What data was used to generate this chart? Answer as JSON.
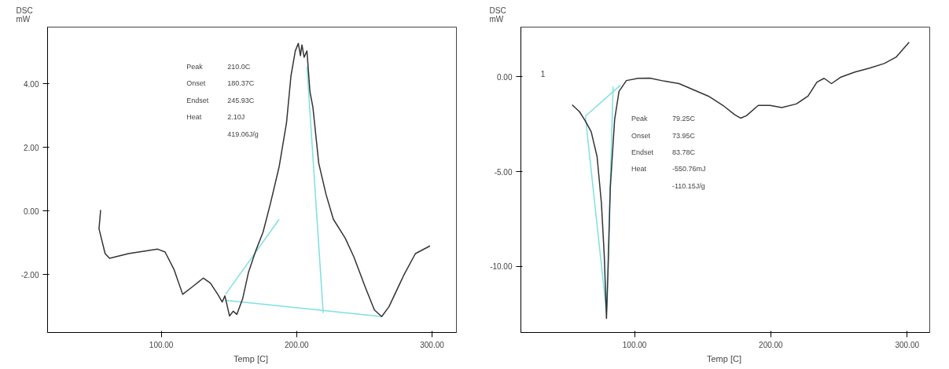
{
  "chart_data": [
    {
      "type": "line",
      "ylabel": "DSC\nmW",
      "xlabel": "Temp  [C]",
      "xlim": [
        16,
        318
      ],
      "ylim": [
        -3.82,
        5.78
      ],
      "xticks": [
        {
          "value": 100,
          "label": "100.00"
        },
        {
          "value": 200,
          "label": "200.00"
        },
        {
          "value": 300,
          "label": "300.00"
        }
      ],
      "yticks": [
        {
          "value": -2,
          "label": "-2.00"
        },
        {
          "value": 0,
          "label": "0.00"
        },
        {
          "value": 2,
          "label": "2.00"
        },
        {
          "value": 4,
          "label": "4.00"
        }
      ],
      "grid": false,
      "marker": "none",
      "line_style": "solid",
      "series": [
        {
          "color": "#333333",
          "x": [
            55.2,
            54,
            58.5,
            61.8,
            75.8,
            97.4,
            102.8,
            109.3,
            115.8,
            123.4,
            131,
            136.3,
            141.7,
            145,
            147,
            150.4,
            153.1,
            155.8,
            160.1,
            164.4,
            169.8,
            175.2,
            180.6,
            187.1,
            192.5,
            195.8,
            199,
            201.2,
            202.8,
            203.9,
            205.5,
            207.6,
            209.8,
            212,
            216.3,
            221.7,
            227.1,
            235.8,
            242.2,
            250.9,
            257.4,
            262.8,
            268.2,
            279,
            287.7,
            298.5
          ],
          "values": [
            0.03,
            -0.56,
            -1.34,
            -1.49,
            -1.34,
            -1.2,
            -1.29,
            -1.83,
            -2.62,
            -2.37,
            -2.11,
            -2.27,
            -2.62,
            -2.86,
            -2.67,
            -3.3,
            -3.15,
            -3.25,
            -2.76,
            -1.93,
            -1.25,
            -0.66,
            0.23,
            1.4,
            2.77,
            4.25,
            5.03,
            5.27,
            4.88,
            5.22,
            4.83,
            5.03,
            3.75,
            3.26,
            1.5,
            0.52,
            -0.26,
            -0.85,
            -1.44,
            -2.42,
            -3.11,
            -3.32,
            -3.01,
            -2.03,
            -1.34,
            -1.1
          ]
        },
        {
          "color": "#7fe0e0",
          "x": [
            147.5,
            262.8
          ],
          "values": [
            -2.81,
            -3.32
          ]
        },
        {
          "color": "#7fe0e0",
          "x": [
            147.5,
            187.1
          ],
          "values": [
            -2.62,
            -0.26
          ]
        },
        {
          "color": "#7fe0e0",
          "x": [
            207.6,
            219.6
          ],
          "values": [
            4.54,
            -3.21
          ]
        }
      ],
      "annotations": [
        "Peak",
        "210.0C",
        "Onset",
        "180.37C",
        "Endset",
        "245.93C",
        "Heat",
        "2.10J",
        "419.06J/g"
      ]
    },
    {
      "type": "line",
      "ylabel": "DSC\nmW",
      "xlabel": "Temp  [C]",
      "xlim": [
        16.6,
        316.6
      ],
      "ylim": [
        -13.48,
        2.62
      ],
      "xticks": [
        {
          "value": 100,
          "label": "100.00"
        },
        {
          "value": 200,
          "label": "200.00"
        },
        {
          "value": 300,
          "label": "300.00"
        }
      ],
      "yticks": [
        {
          "value": -10,
          "label": "-10.00"
        },
        {
          "value": -5,
          "label": "-5.00"
        },
        {
          "value": 0,
          "label": "0.00"
        }
      ],
      "grid": false,
      "marker": "none",
      "line_style": "solid",
      "series": [
        {
          "name": "1",
          "color": "#333333",
          "x": [
            54.2,
            59.6,
            63.9,
            68.2,
            72.5,
            75.7,
            77.8,
            79.4,
            80.6,
            82.2,
            85.4,
            88.6,
            94,
            102.6,
            111.2,
            121.9,
            132.7,
            143.4,
            154.2,
            164.9,
            173.5,
            177.8,
            182.1,
            190.8,
            199.4,
            208,
            218.7,
            227.3,
            233.8,
            239.1,
            244.5,
            251,
            261.7,
            272.5,
            283.2,
            291.8,
            301.5
          ],
          "values": [
            -1.48,
            -1.84,
            -2.33,
            -2.9,
            -4.21,
            -6.67,
            -9.46,
            -12.74,
            -10.11,
            -5.85,
            -2.25,
            -0.77,
            -0.2,
            -0.08,
            -0.07,
            -0.23,
            -0.36,
            -0.69,
            -1.02,
            -1.51,
            -2.0,
            -2.18,
            -2.05,
            -1.51,
            -1.51,
            -1.62,
            -1.43,
            -1.02,
            -0.28,
            -0.08,
            -0.36,
            -0.03,
            0.25,
            0.46,
            0.7,
            1.03,
            1.82
          ]
        },
        {
          "color": "#7fe0e0",
          "x": [
            63.9,
            89.7
          ],
          "values": [
            -2.08,
            -0.44
          ]
        },
        {
          "color": "#7fe0e0",
          "x": [
            63.9,
            79.4,
            84.3
          ],
          "values": [
            -2.08,
            -12.4,
            -0.52
          ]
        }
      ],
      "annotations": [
        "Peak",
        "79.25C",
        "Onset",
        "73.95C",
        "Endset",
        "83.78C",
        "Heat",
        "-550.76mJ",
        "-110.15J/g"
      ]
    }
  ]
}
